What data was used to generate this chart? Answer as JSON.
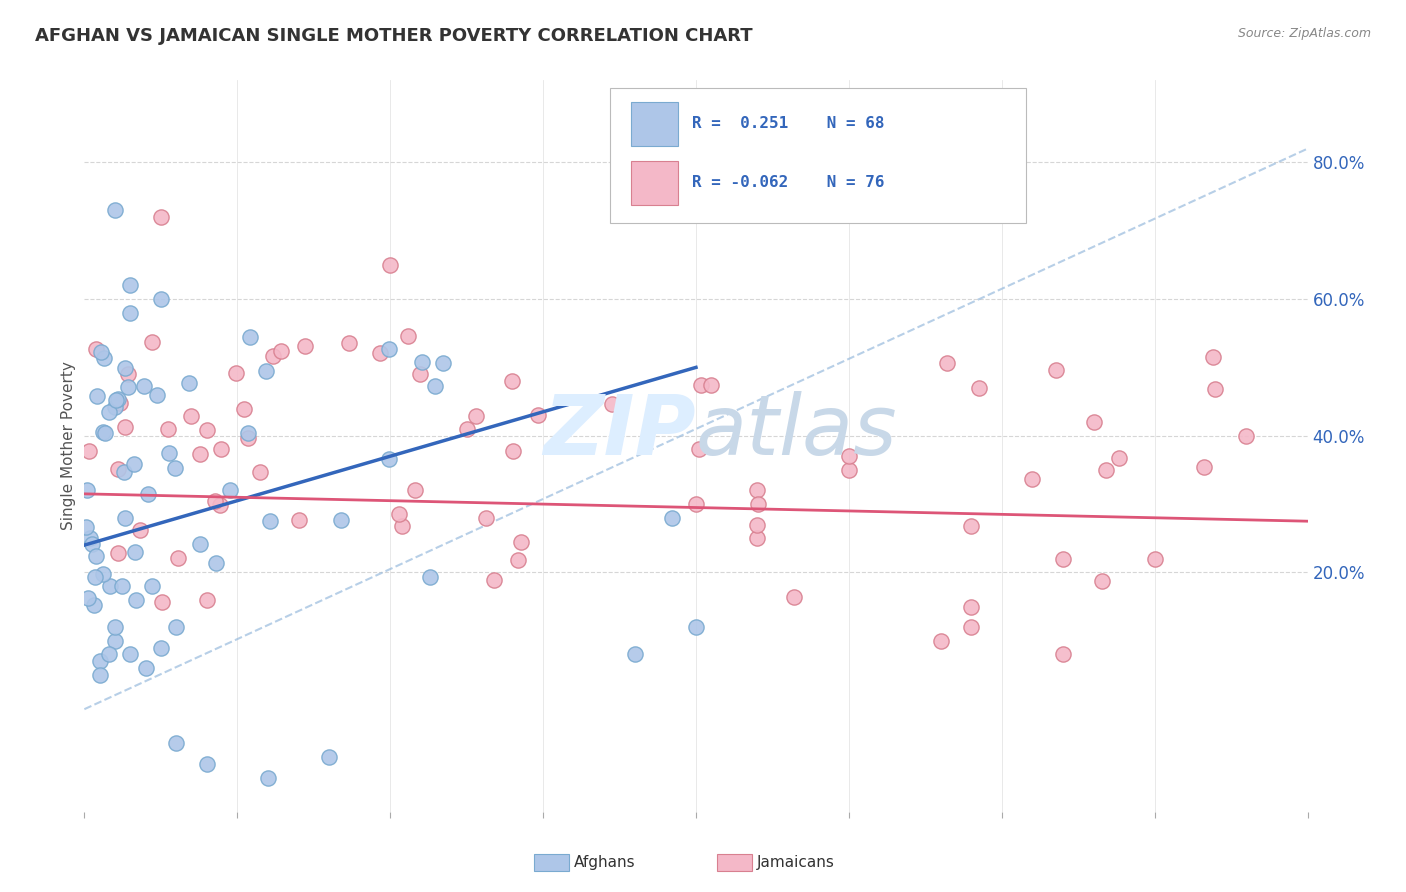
{
  "title": "AFGHAN VS JAMAICAN SINGLE MOTHER POVERTY CORRELATION CHART",
  "source_text": "Source: ZipAtlas.com",
  "ylabel": "Single Mother Poverty",
  "right_yticks": [
    0.2,
    0.4,
    0.6,
    0.8
  ],
  "right_yticklabels": [
    "20.0%",
    "40.0%",
    "60.0%",
    "80.0%"
  ],
  "xlim": [
    0.0,
    0.4
  ],
  "ylim": [
    -0.15,
    0.92
  ],
  "blue_color": "#aec6e8",
  "blue_edge_color": "#7aaad0",
  "pink_color": "#f4b8c8",
  "pink_edge_color": "#d88090",
  "blue_line_color": "#3366bb",
  "pink_line_color": "#dd5577",
  "diagonal_color": "#99bbdd",
  "grid_color": "#cccccc",
  "background_color": "#ffffff",
  "title_color": "#333333",
  "legend_text_color": "#3366bb",
  "watermark_color": "#ddeeff",
  "legend_r1": "R =  0.251",
  "legend_n1": "N = 68",
  "legend_r2": "R = -0.062",
  "legend_n2": "N = 76",
  "blue_line_x0": 0.0,
  "blue_line_y0": 0.24,
  "blue_line_x1": 0.2,
  "blue_line_y1": 0.5,
  "pink_line_x0": 0.0,
  "pink_line_y0": 0.315,
  "pink_line_x1": 0.4,
  "pink_line_y1": 0.275
}
